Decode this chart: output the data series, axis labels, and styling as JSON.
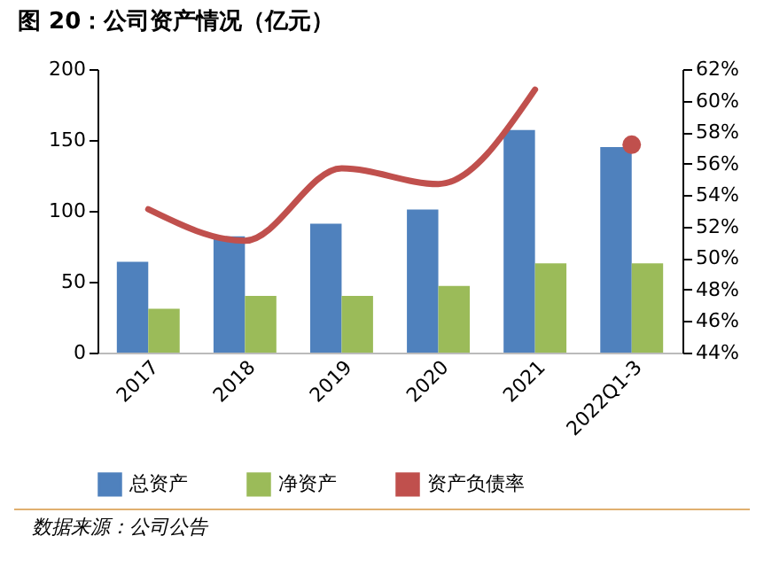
{
  "chart_data": {
    "type": "bar",
    "title": "图 20：公司资产情况（亿元）",
    "categories": [
      "2017",
      "2018",
      "2019",
      "2020",
      "2021",
      "2022Q1-3"
    ],
    "series": [
      {
        "name": "总资产",
        "color": "#4f81bd",
        "values": [
          64,
          82,
          91,
          101,
          157,
          145
        ]
      },
      {
        "name": "净资产",
        "color": "#9bbb59",
        "values": [
          31,
          40,
          40,
          47,
          63,
          63
        ]
      },
      {
        "name": "资产负债率",
        "type": "line",
        "axis": "y2",
        "color": "#c0504d",
        "values": [
          53.1,
          51.1,
          55.7,
          54.7,
          60.7,
          null
        ]
      },
      {
        "type": "scatter",
        "axis": "y2",
        "color": "#c0504d",
        "values": [
          null,
          null,
          null,
          null,
          null,
          57.2
        ]
      }
    ],
    "ylim": [
      0,
      200
    ],
    "yticks": [
      0,
      50,
      100,
      150,
      200
    ],
    "y2lim": [
      44,
      62
    ],
    "y2ticks": [
      {
        "value": 44,
        "label": "44%"
      },
      {
        "value": 46,
        "label": "46%"
      },
      {
        "value": 48,
        "label": "48%"
      },
      {
        "value": 50,
        "label": "50%"
      },
      {
        "value": 52,
        "label": "52%"
      },
      {
        "value": 54,
        "label": "54%"
      },
      {
        "value": 56,
        "label": "56%"
      },
      {
        "value": 58,
        "label": "58%"
      },
      {
        "value": 60,
        "label": "60%"
      },
      {
        "value": 62,
        "label": "62%"
      }
    ],
    "legend": "bottom",
    "annotations": [
      "数据来源：公司公告"
    ]
  }
}
